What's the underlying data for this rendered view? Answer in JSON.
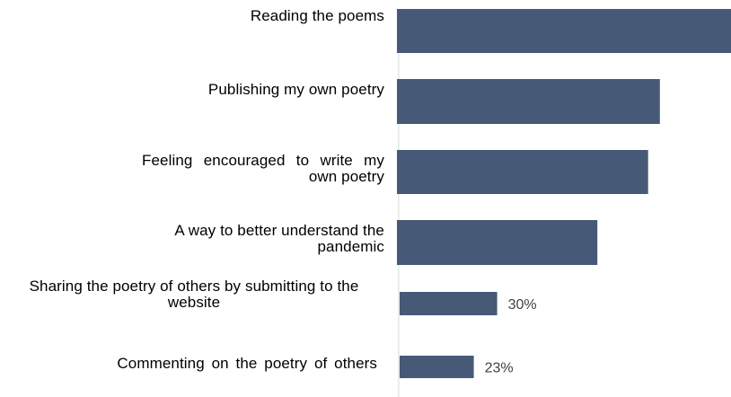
{
  "chart_data": {
    "type": "bar",
    "orientation": "horizontal",
    "color": "#465a78",
    "xlim": [
      0,
      100
    ],
    "categories": [
      "Reading the poems",
      "Publishing my own poetry",
      "Feeling encouraged to write my own poetry",
      "A way to better understand the pandemic",
      "Sharing the poetry of others by submitting to the website",
      "Commenting on the poetry of others"
    ],
    "values": [
      100,
      78.7,
      75.2,
      60,
      30,
      23
    ],
    "data_labels": [
      "",
      "",
      "",
      "",
      "30%",
      "23%"
    ],
    "grid": false
  }
}
